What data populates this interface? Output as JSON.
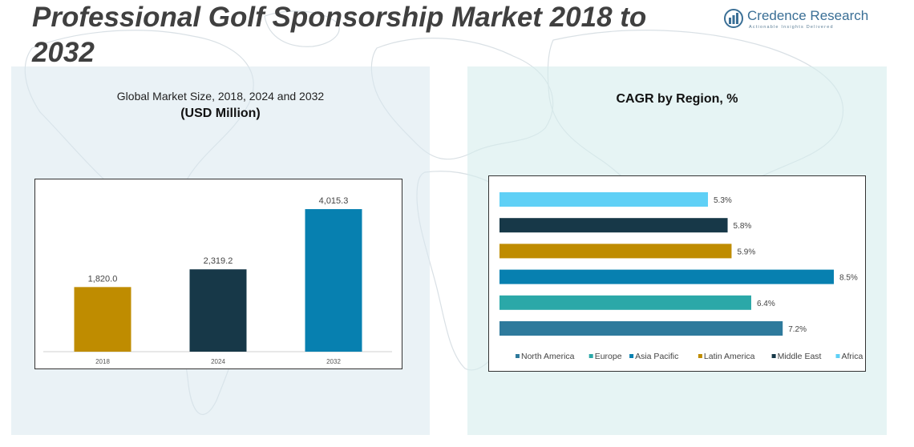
{
  "header": {
    "title": "Professional Golf Sponsorship Market 2018 to 2032",
    "brand_name": "Credence Research",
    "brand_tagline": "Actionable Insights Delivered"
  },
  "left_panel": {
    "subtitle": "Global Market Size, 2018, 2024 and 2032",
    "unit": "(USD Million)"
  },
  "right_panel": {
    "title": "CAGR by Region, %"
  },
  "chart_data": [
    {
      "type": "bar",
      "orientation": "vertical",
      "title": "Global Market Size, 2018, 2024 and 2032",
      "ylabel": "(USD Million)",
      "categories": [
        "2018",
        "2024",
        "2032"
      ],
      "values": [
        1820.0,
        2319.2,
        4015.3
      ],
      "value_labels": [
        "1,820.0",
        "2,319.2",
        "4,015.3"
      ],
      "colors": [
        "#bf8c00",
        "#173848",
        "#0780b0"
      ],
      "ylim": [
        0,
        4400
      ],
      "grid": false
    },
    {
      "type": "bar",
      "orientation": "horizontal",
      "title": "CAGR by Region, %",
      "series": [
        {
          "name": "North America",
          "values": [
            7.2
          ],
          "value_label": "7.2%",
          "color": "#2e7a9c"
        },
        {
          "name": "Europe",
          "values": [
            6.4
          ],
          "value_label": "6.4%",
          "color": "#2ba8a8"
        },
        {
          "name": "Asia Pacific",
          "values": [
            8.5
          ],
          "value_label": "8.5%",
          "color": "#0780b0"
        },
        {
          "name": "Latin America",
          "values": [
            5.9
          ],
          "value_label": "5.9%",
          "color": "#bf8c00"
        },
        {
          "name": "Middle East",
          "values": [
            5.8
          ],
          "value_label": "5.8%",
          "color": "#173848"
        },
        {
          "name": "Africa",
          "values": [
            5.3
          ],
          "value_label": "5.3%",
          "color": "#5fd0f6"
        }
      ],
      "xlim": [
        0,
        8.5
      ],
      "legend_position": "bottom",
      "grid": false
    }
  ]
}
